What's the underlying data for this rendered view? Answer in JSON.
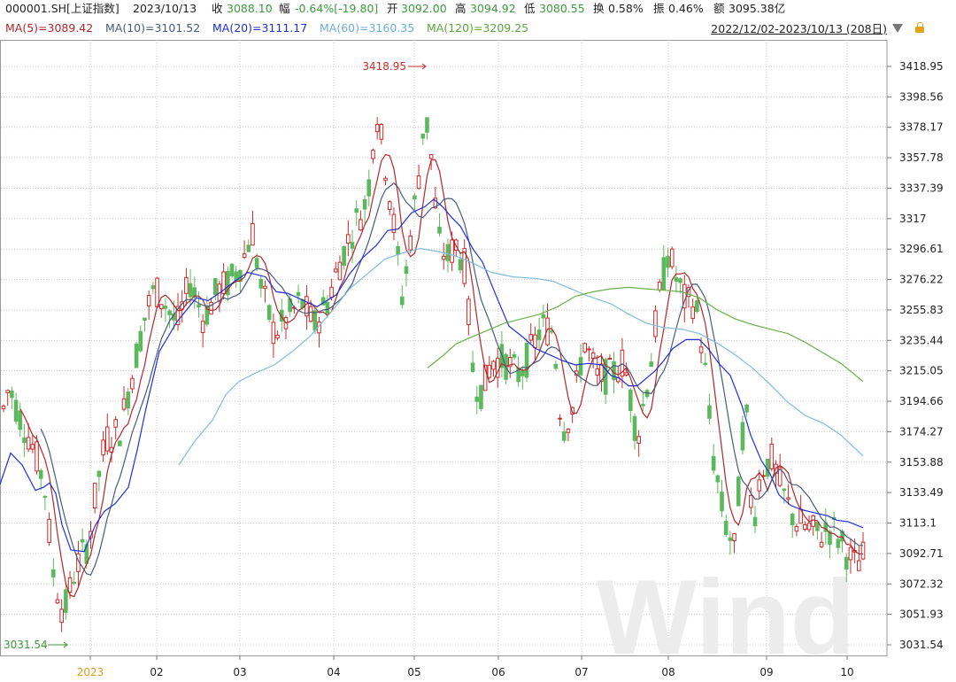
{
  "header": {
    "code": "000001.SH[上证指数]",
    "date": "2023/10/13",
    "close_label": "收",
    "close": "3088.10",
    "pct_label": "幅",
    "pct": "-0.64%[-19.80]",
    "open_label": "开",
    "open": "3092.00",
    "high_label": "高",
    "high": "3094.92",
    "low_label": "低",
    "low": "3080.55",
    "turnover_label": "换",
    "turnover": "0.58%",
    "amp_label": "振",
    "amp": "0.46%",
    "amount_label": "额",
    "amount": "3095.38亿"
  },
  "ma_legend": [
    {
      "text": "MA(5)=3089.42",
      "color": "#b0282d"
    },
    {
      "text": "MA(10)=3101.52",
      "color": "#4a5a7a"
    },
    {
      "text": "MA(20)=3111.17",
      "color": "#1f2fd6"
    },
    {
      "text": "MA(60)=3160.35",
      "color": "#6aaed6"
    },
    {
      "text": "MA(120)=3209.25",
      "color": "#5aa83a"
    }
  ],
  "range_text": "2022/12/02-2023/10/13 (208日)",
  "icons": {
    "dropdown": "triangle-down-icon",
    "lock": "lock-icon"
  },
  "chart_data": {
    "type": "candlestick",
    "x_ticks": [
      "2023",
      "02",
      "03",
      "04",
      "05",
      "06",
      "07",
      "08",
      "09",
      "10"
    ],
    "y_ticks": [
      "3418.95",
      "3398.56",
      "3378.17",
      "3357.78",
      "3337.39",
      "3317",
      "3296.61",
      "3276.22",
      "3255.83",
      "3235.44",
      "3215.05",
      "3194.66",
      "3174.27",
      "3153.88",
      "3133.49",
      "3113.1",
      "3092.71",
      "3072.32",
      "3051.93",
      "3031.54"
    ],
    "ylim": [
      3031.54,
      3418.95
    ],
    "annotations": {
      "max_label": "3418.95",
      "min_label": "3031.54"
    },
    "watermark": "Wind",
    "colors": {
      "up": "#cc2b2b",
      "down": "#5cb85c",
      "ma5": "#b0282d",
      "ma10": "#4a5a7a",
      "ma20": "#1f2fd6",
      "ma60": "#7fbce0",
      "ma120": "#6bb04a",
      "grid": "#c9c9c9"
    },
    "ma20": [
      [
        0,
        3139
      ],
      [
        12,
        3160
      ],
      [
        25,
        3152
      ],
      [
        32,
        3144
      ],
      [
        40,
        3135
      ],
      [
        49,
        3137
      ],
      [
        56,
        3140
      ],
      [
        63,
        3133
      ],
      [
        70,
        3112
      ],
      [
        80,
        3095
      ],
      [
        95,
        3094
      ],
      [
        108,
        3112
      ],
      [
        118,
        3121
      ],
      [
        130,
        3126
      ],
      [
        145,
        3137
      ],
      [
        155,
        3162
      ],
      [
        165,
        3190
      ],
      [
        180,
        3228
      ],
      [
        200,
        3248
      ],
      [
        222,
        3264
      ],
      [
        235,
        3262
      ],
      [
        250,
        3268
      ],
      [
        265,
        3275
      ],
      [
        280,
        3281
      ],
      [
        300,
        3278
      ],
      [
        312,
        3268
      ],
      [
        325,
        3267
      ],
      [
        340,
        3263
      ],
      [
        358,
        3258
      ],
      [
        380,
        3266
      ],
      [
        395,
        3280
      ],
      [
        410,
        3291
      ],
      [
        425,
        3299
      ],
      [
        438,
        3309
      ],
      [
        450,
        3310
      ],
      [
        465,
        3321
      ],
      [
        480,
        3325
      ],
      [
        490,
        3330
      ],
      [
        500,
        3325
      ],
      [
        510,
        3318
      ],
      [
        520,
        3312
      ],
      [
        535,
        3296
      ],
      [
        545,
        3288
      ],
      [
        560,
        3266
      ],
      [
        575,
        3245
      ],
      [
        590,
        3238
      ],
      [
        605,
        3230
      ],
      [
        620,
        3226
      ],
      [
        635,
        3222
      ],
      [
        650,
        3219
      ],
      [
        665,
        3220
      ],
      [
        680,
        3219
      ],
      [
        690,
        3212
      ],
      [
        700,
        3210
      ],
      [
        710,
        3205
      ],
      [
        720,
        3205
      ],
      [
        730,
        3210
      ],
      [
        740,
        3215
      ],
      [
        750,
        3222
      ],
      [
        760,
        3230
      ],
      [
        775,
        3236
      ],
      [
        790,
        3236
      ],
      [
        800,
        3230
      ],
      [
        812,
        3220
      ],
      [
        825,
        3212
      ],
      [
        838,
        3192
      ],
      [
        848,
        3172
      ],
      [
        860,
        3155
      ],
      [
        870,
        3146
      ],
      [
        880,
        3132
      ],
      [
        893,
        3125
      ],
      [
        906,
        3122
      ],
      [
        920,
        3120
      ],
      [
        935,
        3118
      ],
      [
        945,
        3115
      ],
      [
        958,
        3114
      ],
      [
        975,
        3110
      ]
    ],
    "ma60": [
      [
        202,
        3152
      ],
      [
        220,
        3168
      ],
      [
        240,
        3182
      ],
      [
        255,
        3199
      ],
      [
        270,
        3208
      ],
      [
        290,
        3214
      ],
      [
        310,
        3219
      ],
      [
        330,
        3228
      ],
      [
        350,
        3238
      ],
      [
        375,
        3255
      ],
      [
        395,
        3270
      ],
      [
        415,
        3280
      ],
      [
        435,
        3290
      ],
      [
        455,
        3294
      ],
      [
        475,
        3297
      ],
      [
        495,
        3295
      ],
      [
        515,
        3292
      ],
      [
        535,
        3287
      ],
      [
        555,
        3281
      ],
      [
        580,
        3278
      ],
      [
        605,
        3277
      ],
      [
        625,
        3275
      ],
      [
        645,
        3270
      ],
      [
        665,
        3265
      ],
      [
        690,
        3260
      ],
      [
        710,
        3253
      ],
      [
        730,
        3247
      ],
      [
        750,
        3244
      ],
      [
        770,
        3243
      ],
      [
        790,
        3240
      ],
      [
        812,
        3233
      ],
      [
        830,
        3226
      ],
      [
        850,
        3217
      ],
      [
        870,
        3206
      ],
      [
        890,
        3194
      ],
      [
        910,
        3185
      ],
      [
        930,
        3180
      ],
      [
        950,
        3172
      ],
      [
        975,
        3158
      ]
    ],
    "ma120": [
      [
        483,
        3217
      ],
      [
        500,
        3225
      ],
      [
        515,
        3233
      ],
      [
        530,
        3237
      ],
      [
        550,
        3242
      ],
      [
        570,
        3247
      ],
      [
        590,
        3250
      ],
      [
        610,
        3253
      ],
      [
        630,
        3258
      ],
      [
        650,
        3265
      ],
      [
        670,
        3268
      ],
      [
        690,
        3270
      ],
      [
        710,
        3271
      ],
      [
        730,
        3270
      ],
      [
        750,
        3269
      ],
      [
        770,
        3268
      ],
      [
        790,
        3264
      ],
      [
        810,
        3256
      ],
      [
        830,
        3250
      ],
      [
        850,
        3246
      ],
      [
        870,
        3243
      ],
      [
        890,
        3240
      ],
      [
        910,
        3234
      ],
      [
        930,
        3227
      ],
      [
        950,
        3220
      ],
      [
        975,
        3208
      ]
    ]
  }
}
